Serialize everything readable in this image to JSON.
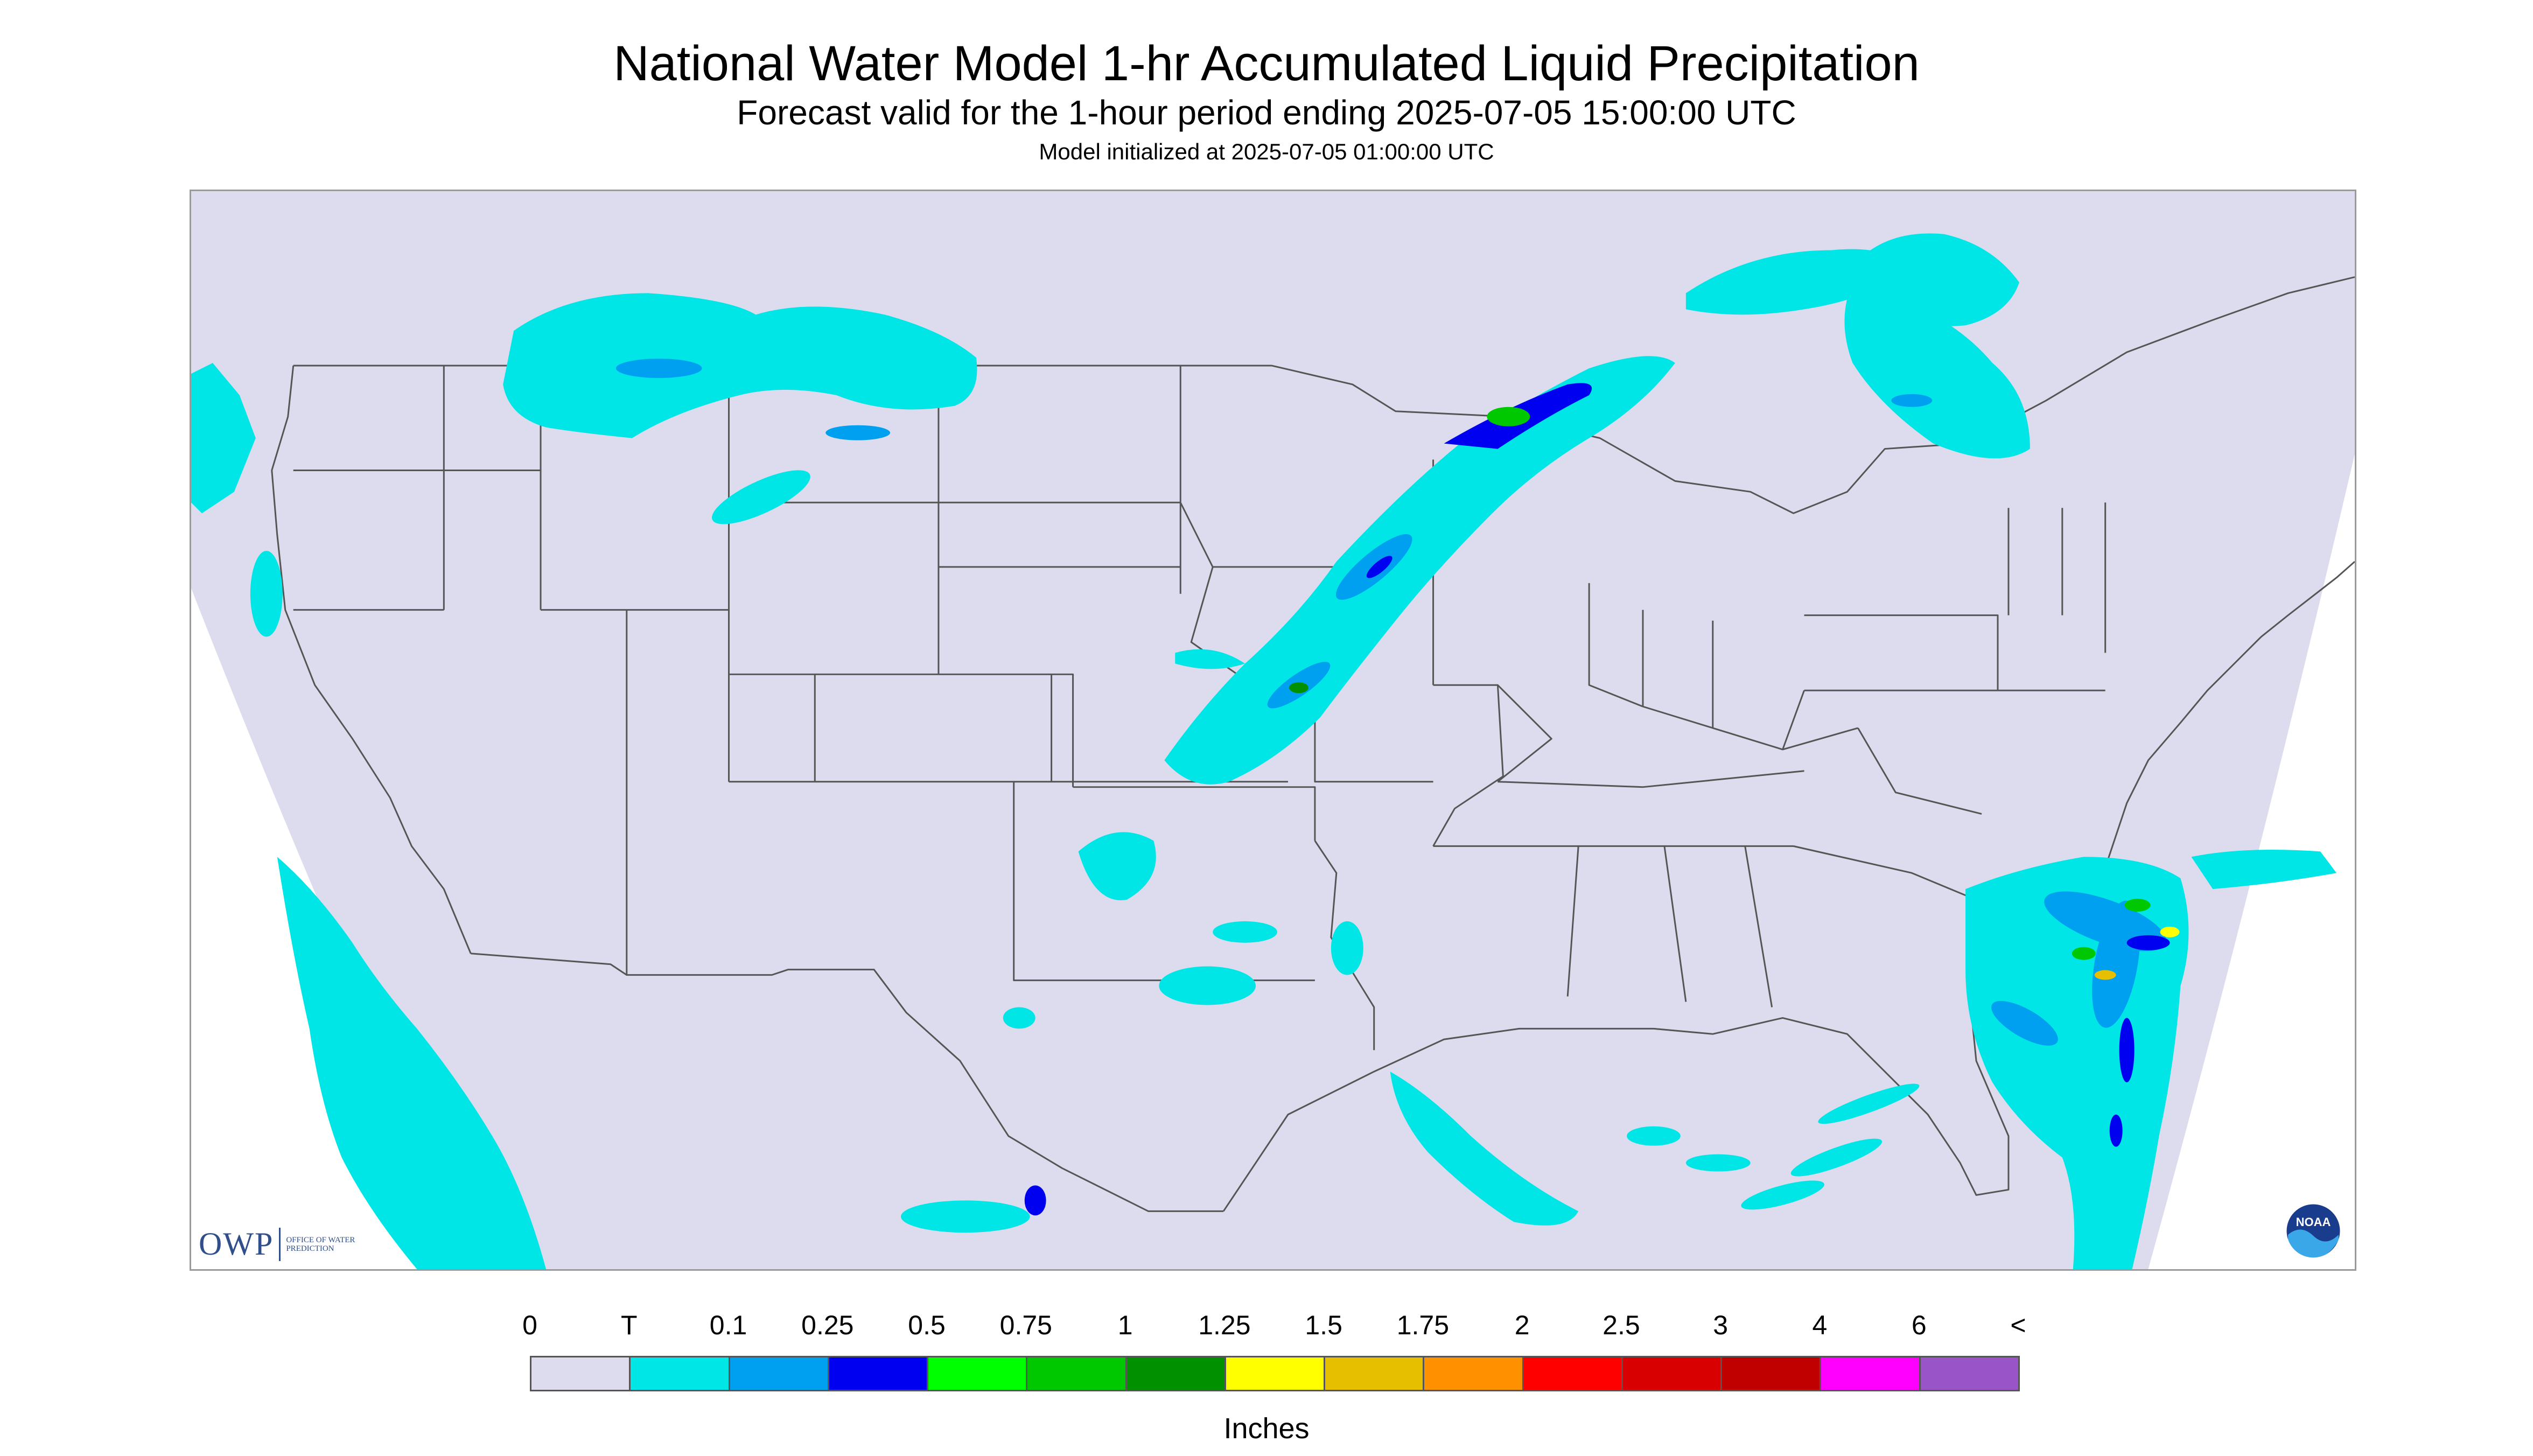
{
  "title": "National Water Model 1-hr Accumulated Liquid Precipitation",
  "subtitle": "Forecast valid for the 1-hour period ending 2025-07-05 15:00:00 UTC",
  "init_text": "Model initialized at 2025-07-05 01:00:00 UTC",
  "logos": {
    "owp_mark": "OWP",
    "owp_text": "OFFICE OF WATER PREDICTION",
    "noaa_text": "NOAA"
  },
  "legend": {
    "units": "Inches",
    "ticks": [
      "0",
      "T",
      "0.1",
      "0.25",
      "0.5",
      "0.75",
      "1",
      "1.25",
      "1.5",
      "1.75",
      "2",
      "2.5",
      "3",
      "4",
      "6",
      "<"
    ],
    "colors": [
      "#dcdcee",
      "#00e6e6",
      "#00a0f0",
      "#0000f0",
      "#00ff00",
      "#00c800",
      "#009000",
      "#ffff00",
      "#e6c000",
      "#ff9000",
      "#ff0000",
      "#d80000",
      "#c00000",
      "#ff00ff",
      "#9955c8"
    ]
  },
  "map": {
    "background_color": "#dcdcee",
    "outside_color": "#ffffff",
    "boundary_color": "#555555",
    "precip_regions": [
      "Pacific Northwest coast",
      "Montana / North Dakota",
      "Upper Midwest band (Minnesota - Iowa)",
      "Ontario / Quebec",
      "Southern Plains (Texas / Oklahoma)",
      "Gulf of Mexico",
      "Southeast coast system (Carolinas / Georgia / Florida)",
      "Baja California / Mexico Pacific coast"
    ]
  }
}
